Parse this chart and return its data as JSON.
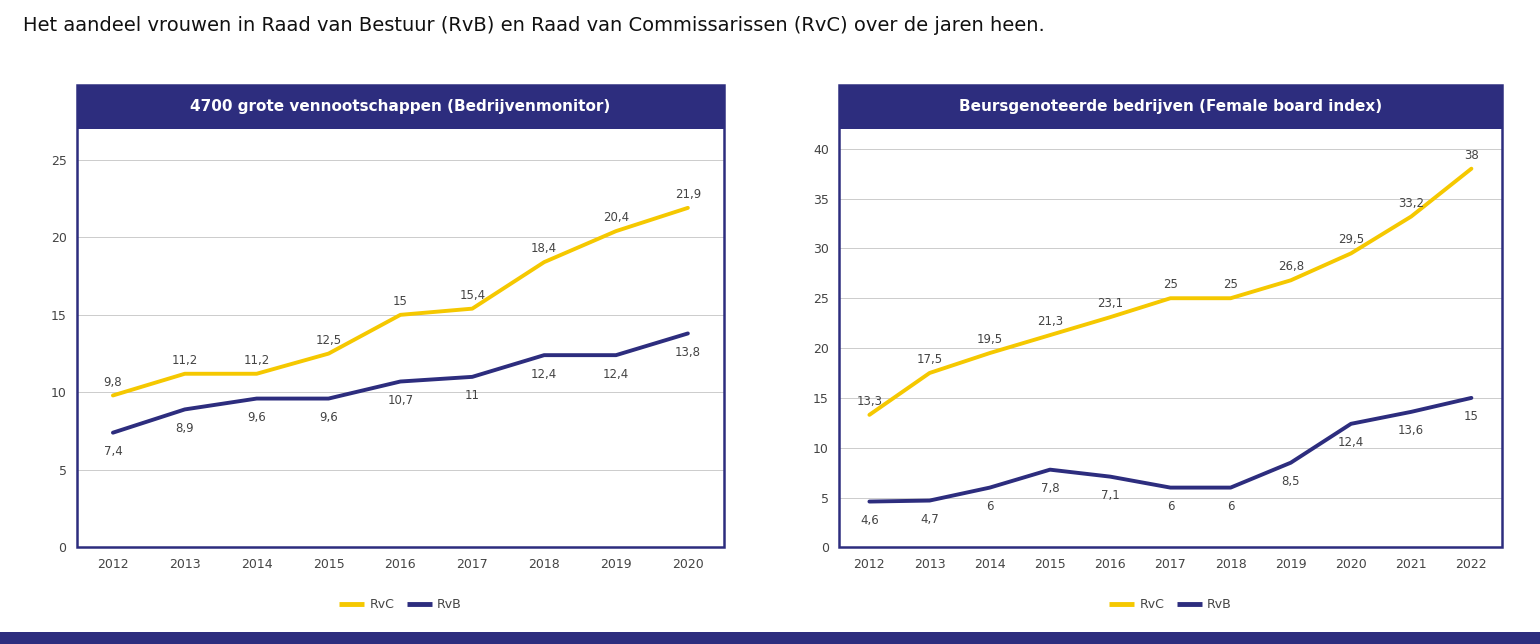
{
  "title": "Het aandeel vrouwen in Raad van Bestuur (RvB) en Raad van Commissarissen (RvC) over de jaren heen.",
  "title_fontsize": 14,
  "panel1_title": "4700 grote vennootschappen (Bedrijvenmonitor)",
  "panel2_title": "Beursgenoteerde bedrijven (Female board index)",
  "panel_title_fontsize": 11,
  "panel_title_color": "#ffffff",
  "panel_title_bg": "#2d2d7e",
  "panel_border_color": "#2d2d7e",
  "chart_bg": "#ffffff",
  "outer_bg": "#ffffff",
  "years1": [
    2012,
    2013,
    2014,
    2015,
    2016,
    2017,
    2018,
    2019,
    2020
  ],
  "rvc1": [
    9.8,
    11.2,
    11.2,
    12.5,
    15.0,
    15.4,
    18.4,
    20.4,
    21.9
  ],
  "rvb1": [
    7.4,
    8.9,
    9.6,
    9.6,
    10.7,
    11.0,
    12.4,
    12.4,
    13.8
  ],
  "years2": [
    2012,
    2013,
    2014,
    2015,
    2016,
    2017,
    2018,
    2019,
    2020,
    2021,
    2022
  ],
  "rvc2": [
    13.3,
    17.5,
    19.5,
    21.3,
    23.1,
    25.0,
    25.0,
    26.8,
    29.5,
    33.2,
    38.0
  ],
  "rvb2": [
    4.6,
    4.7,
    6.0,
    7.8,
    7.1,
    6.0,
    6.0,
    8.5,
    12.4,
    13.6,
    15.0
  ],
  "rvc_color": "#f5c800",
  "rvb_color": "#2d2d7e",
  "line_width": 2.8,
  "ylim1": [
    0,
    27
  ],
  "yticks1": [
    0,
    5,
    10,
    15,
    20,
    25
  ],
  "ylim2": [
    0,
    42
  ],
  "yticks2": [
    0,
    5,
    10,
    15,
    20,
    25,
    30,
    35,
    40
  ],
  "legend_rvc": "RvC",
  "legend_rvb": "RvB",
  "annotation_fontsize": 8.5,
  "annotation_color": "#444444",
  "axis_fontsize": 9,
  "grid_color": "#cccccc",
  "tick_label_color": "#444444",
  "bottom_bar_color": "#2d2d7e",
  "bottom_bar_height": 0.018
}
